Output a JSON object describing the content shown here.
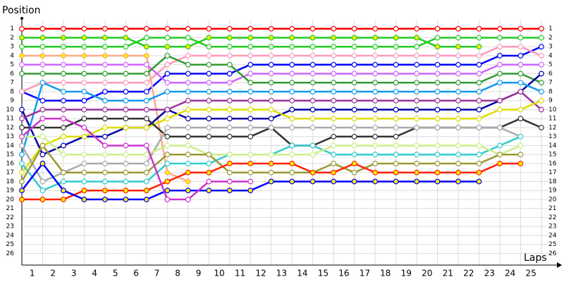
{
  "chart_data": {
    "type": "line",
    "y_label": "Position",
    "x_label": "Laps",
    "x": [
      0,
      1,
      2,
      3,
      4,
      5,
      6,
      7,
      8,
      9,
      10,
      11,
      12,
      13,
      14,
      15,
      16,
      17,
      18,
      19,
      20,
      21,
      22,
      23,
      24,
      25
    ],
    "xlim": [
      0,
      25.75
    ],
    "xticks": [
      1,
      2,
      3,
      4,
      5,
      6,
      7,
      8,
      9,
      10,
      11,
      12,
      13,
      14,
      15,
      16,
      17,
      18,
      19,
      20,
      21,
      22,
      23,
      24,
      25
    ],
    "ylim": [
      0,
      27.3
    ],
    "yticks": [
      1,
      2,
      3,
      4,
      5,
      6,
      7,
      8,
      9,
      10,
      11,
      12,
      13,
      14,
      15,
      16,
      17,
      18,
      19,
      20,
      21,
      22,
      23,
      24,
      25,
      26
    ],
    "y_inverted": true,
    "grid": true,
    "series": [
      {
        "color": "#ff0000",
        "marker_color": "#ffffff",
        "values": [
          1,
          1,
          1,
          1,
          1,
          1,
          1,
          1,
          1,
          1,
          1,
          1,
          1,
          1,
          1,
          1,
          1,
          1,
          1,
          1,
          1,
          1,
          1,
          1,
          1,
          1
        ]
      },
      {
        "color": "#22cc22",
        "marker_color": "#ffffff",
        "values": [
          3,
          3,
          3,
          3,
          3,
          3,
          2,
          2,
          2,
          3,
          3,
          3,
          3,
          3,
          3,
          3,
          3,
          3,
          3,
          3,
          2,
          2,
          2,
          2,
          2,
          2
        ]
      },
      {
        "color": "#22cc22",
        "marker_color": "#ffee00",
        "values": [
          2,
          2,
          2,
          2,
          2,
          2,
          3,
          3,
          3,
          2,
          2,
          2,
          2,
          2,
          2,
          2,
          2,
          2,
          2,
          2,
          3,
          3,
          3,
          null,
          null,
          null
        ]
      },
      {
        "color": "#0000ff",
        "marker_color": "#ffffff",
        "values": [
          8,
          9,
          9,
          9,
          8,
          8,
          8,
          6,
          6,
          6,
          6,
          5,
          5,
          5,
          5,
          5,
          5,
          5,
          5,
          5,
          5,
          5,
          5,
          4,
          4,
          3
        ]
      },
      {
        "color": "#ff99bb",
        "marker_color": "#ffffff",
        "values": [
          8,
          7,
          7,
          7,
          7,
          7,
          7,
          5,
          4,
          4,
          4,
          4,
          4,
          4,
          4,
          4,
          4,
          4,
          4,
          4,
          4,
          4,
          4,
          3,
          3,
          4
        ]
      },
      {
        "color": "#ffaa88",
        "marker_color": "#ffee00",
        "values": [
          4,
          4,
          4,
          4,
          4,
          4,
          4,
          17,
          18,
          null,
          null,
          null,
          null,
          null,
          null,
          null,
          null,
          null,
          null,
          null,
          null,
          null,
          null,
          null,
          null,
          null
        ]
      },
      {
        "color": "#cc66ff",
        "marker_color": "#ffffff",
        "values": [
          5,
          5,
          5,
          5,
          5,
          5,
          5,
          7,
          7,
          7,
          7,
          6,
          6,
          6,
          6,
          6,
          6,
          6,
          6,
          6,
          6,
          6,
          6,
          5,
          5,
          5
        ]
      },
      {
        "color": "#339933",
        "marker_color": "#ffffff",
        "values": [
          6,
          6,
          6,
          6,
          6,
          6,
          6,
          4,
          5,
          5,
          5,
          7,
          7,
          7,
          7,
          7,
          7,
          7,
          7,
          7,
          7,
          7,
          7,
          6,
          6,
          7
        ]
      },
      {
        "color": "#0000aa",
        "marker_color": "#ffffff",
        "values": [
          10,
          15,
          14,
          13,
          13,
          12,
          12,
          10,
          11,
          11,
          11,
          11,
          11,
          10,
          10,
          10,
          10,
          10,
          10,
          10,
          10,
          10,
          10,
          9,
          8,
          6
        ]
      },
      {
        "color": "#1199ee",
        "marker_color": "#ffffff",
        "values": [
          15,
          7,
          8,
          8,
          9,
          9,
          9,
          8,
          8,
          8,
          8,
          8,
          8,
          8,
          8,
          8,
          8,
          8,
          8,
          8,
          8,
          8,
          8,
          7,
          7,
          8
        ]
      },
      {
        "color": "#993399",
        "marker_color": "#ffffff",
        "values": [
          11,
          10,
          10,
          10,
          10,
          10,
          10,
          10,
          9,
          9,
          9,
          9,
          9,
          9,
          9,
          9,
          9,
          9,
          9,
          9,
          9,
          9,
          9,
          9,
          8,
          10
        ]
      },
      {
        "color": "#dddd00",
        "marker_color": "#ffffff",
        "values": [
          17,
          14,
          13,
          13,
          12,
          12,
          12,
          11,
          10,
          10,
          10,
          10,
          10,
          11,
          11,
          11,
          11,
          11,
          11,
          11,
          11,
          11,
          11,
          10,
          10,
          9
        ]
      },
      {
        "color": "#333333",
        "marker_color": "#ffffff",
        "values": [
          12,
          12,
          12,
          11,
          11,
          11,
          11,
          13,
          13,
          13,
          13,
          13,
          12,
          14,
          14,
          13,
          13,
          13,
          13,
          12,
          12,
          12,
          12,
          12,
          11,
          12
        ]
      },
      {
        "color": "#aaaaaa",
        "marker_color": "#ffffff",
        "values": [
          14,
          18,
          17,
          16,
          16,
          16,
          16,
          12,
          12,
          12,
          12,
          12,
          12,
          12,
          12,
          12,
          12,
          12,
          12,
          12,
          12,
          12,
          12,
          12,
          13,
          null
        ]
      },
      {
        "color": "#33cccc",
        "marker_color": "#ffffff",
        "values": [
          16,
          19,
          18,
          18,
          18,
          18,
          18,
          16,
          16,
          16,
          15,
          15,
          15,
          14,
          14,
          15,
          15,
          15,
          15,
          15,
          15,
          15,
          15,
          14,
          13,
          null
        ]
      },
      {
        "color": "#ccee88",
        "marker_color": "#ffffff",
        "values": [
          13,
          13,
          15,
          15,
          15,
          15,
          15,
          14,
          14,
          15,
          15,
          15,
          15,
          15,
          15,
          14,
          14,
          14,
          14,
          14,
          14,
          14,
          14,
          15,
          14,
          null
        ]
      },
      {
        "color": "#999933",
        "marker_color": "#ffffff",
        "values": [
          18,
          14,
          17,
          17,
          17,
          17,
          17,
          15,
          15,
          15,
          17,
          17,
          17,
          17,
          17,
          16,
          17,
          16,
          16,
          16,
          16,
          16,
          16,
          15,
          15,
          null
        ]
      },
      {
        "color": "#ff2200",
        "marker_color": "#ffee00",
        "values": [
          20,
          20,
          20,
          19,
          19,
          19,
          19,
          18,
          17,
          17,
          16,
          16,
          16,
          16,
          17,
          17,
          16,
          17,
          17,
          17,
          17,
          17,
          17,
          16,
          16,
          null
        ]
      },
      {
        "color": "#0000ff",
        "marker_color": "#ffee00",
        "values": [
          19,
          16,
          19,
          20,
          20,
          20,
          20,
          19,
          19,
          19,
          19,
          19,
          18,
          18,
          18,
          18,
          18,
          18,
          18,
          18,
          18,
          18,
          18,
          null,
          null,
          null
        ]
      },
      {
        "color": "#cc33cc",
        "marker_color": "#ffffff",
        "values": [
          13,
          11,
          11,
          12,
          14,
          14,
          14,
          20,
          20,
          18,
          18,
          18,
          null,
          null,
          null,
          null,
          null,
          null,
          null,
          null,
          null,
          null,
          null,
          null,
          null,
          null
        ]
      }
    ]
  }
}
